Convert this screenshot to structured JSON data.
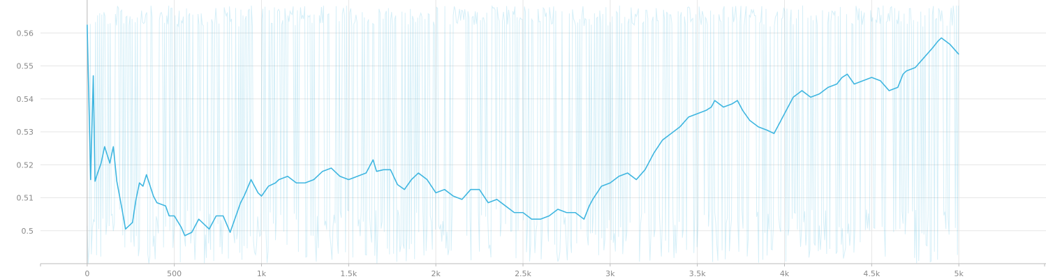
{
  "chart_data": {
    "type": "line",
    "title": "",
    "xlabel": "",
    "ylabel": "",
    "xlim": [
      -500,
      5500
    ],
    "ylim": [
      0.49,
      0.57
    ],
    "grid": true,
    "legend": "none",
    "x_ticks": [
      {
        "value": 0,
        "label": "0"
      },
      {
        "value": 500,
        "label": "500"
      },
      {
        "value": 1000,
        "label": "1k"
      },
      {
        "value": 1500,
        "label": "1.5k"
      },
      {
        "value": 2000,
        "label": "2k"
      },
      {
        "value": 2500,
        "label": "2.5k"
      },
      {
        "value": 3000,
        "label": "3k"
      },
      {
        "value": 3500,
        "label": "3.5k"
      },
      {
        "value": 4000,
        "label": "4k"
      },
      {
        "value": 4500,
        "label": "4.5k"
      },
      {
        "value": 5000,
        "label": "5k"
      }
    ],
    "y_ticks": [
      {
        "value": 0.5,
        "label": "0.5"
      },
      {
        "value": 0.51,
        "label": "0.51"
      },
      {
        "value": 0.52,
        "label": "0.52"
      },
      {
        "value": 0.53,
        "label": "0.53"
      },
      {
        "value": 0.54,
        "label": "0.54"
      },
      {
        "value": 0.55,
        "label": "0.55"
      },
      {
        "value": 0.56,
        "label": "0.56"
      }
    ],
    "series": [
      {
        "role": "smoothed",
        "color": "#3fb6e0",
        "x": [
          0,
          20,
          35,
          45,
          60,
          80,
          100,
          130,
          150,
          170,
          200,
          220,
          260,
          280,
          300,
          320,
          340,
          380,
          400,
          450,
          470,
          500,
          540,
          560,
          600,
          640,
          680,
          700,
          740,
          780,
          820,
          880,
          900,
          940,
          980,
          1000,
          1040,
          1080,
          1100,
          1150,
          1200,
          1250,
          1300,
          1350,
          1400,
          1450,
          1500,
          1550,
          1600,
          1640,
          1660,
          1700,
          1740,
          1780,
          1820,
          1860,
          1900,
          1950,
          2000,
          2050,
          2100,
          2150,
          2200,
          2250,
          2300,
          2350,
          2400,
          2450,
          2500,
          2550,
          2600,
          2650,
          2700,
          2750,
          2800,
          2850,
          2880,
          2900,
          2950,
          3000,
          3050,
          3100,
          3150,
          3200,
          3250,
          3300,
          3350,
          3400,
          3450,
          3500,
          3550,
          3580,
          3600,
          3650,
          3700,
          3730,
          3760,
          3800,
          3850,
          3900,
          3940,
          3980,
          4000,
          4050,
          4100,
          4150,
          4200,
          4250,
          4300,
          4330,
          4360,
          4400,
          4450,
          4500,
          4550,
          4600,
          4650,
          4680,
          4700,
          4750,
          4800,
          4850,
          4880,
          4900,
          4950,
          5000
        ],
        "y": [
          0.5625,
          0.5155,
          0.547,
          0.515,
          0.5175,
          0.5205,
          0.5255,
          0.5205,
          0.5255,
          0.515,
          0.5065,
          0.5005,
          0.5025,
          0.5095,
          0.5145,
          0.5135,
          0.517,
          0.5105,
          0.5085,
          0.5075,
          0.5045,
          0.5045,
          0.501,
          0.4985,
          0.4995,
          0.5035,
          0.5015,
          0.5005,
          0.5045,
          0.5045,
          0.4995,
          0.5085,
          0.5105,
          0.5155,
          0.5115,
          0.5105,
          0.5135,
          0.5145,
          0.5155,
          0.5165,
          0.5145,
          0.5145,
          0.5155,
          0.518,
          0.519,
          0.5165,
          0.5155,
          0.5165,
          0.5175,
          0.5215,
          0.518,
          0.5185,
          0.5185,
          0.514,
          0.5125,
          0.5155,
          0.5175,
          0.5155,
          0.5115,
          0.5125,
          0.5105,
          0.5095,
          0.5125,
          0.5125,
          0.5085,
          0.5095,
          0.5075,
          0.5055,
          0.5055,
          0.5035,
          0.5035,
          0.5045,
          0.5065,
          0.5055,
          0.5055,
          0.5035,
          0.5075,
          0.5095,
          0.5135,
          0.5145,
          0.5165,
          0.5175,
          0.5155,
          0.5185,
          0.5235,
          0.5275,
          0.5295,
          0.5315,
          0.5345,
          0.5355,
          0.5365,
          0.5375,
          0.5395,
          0.5375,
          0.5385,
          0.5395,
          0.5365,
          0.5335,
          0.5315,
          0.5305,
          0.5295,
          0.5335,
          0.5355,
          0.5405,
          0.5425,
          0.5405,
          0.5415,
          0.5435,
          0.5445,
          0.5465,
          0.5475,
          0.5445,
          0.5455,
          0.5465,
          0.5455,
          0.5425,
          0.5435,
          0.5475,
          0.5485,
          0.5495,
          0.5525,
          0.5555,
          0.5575,
          0.5585,
          0.5565,
          0.5535
        ]
      }
    ]
  }
}
